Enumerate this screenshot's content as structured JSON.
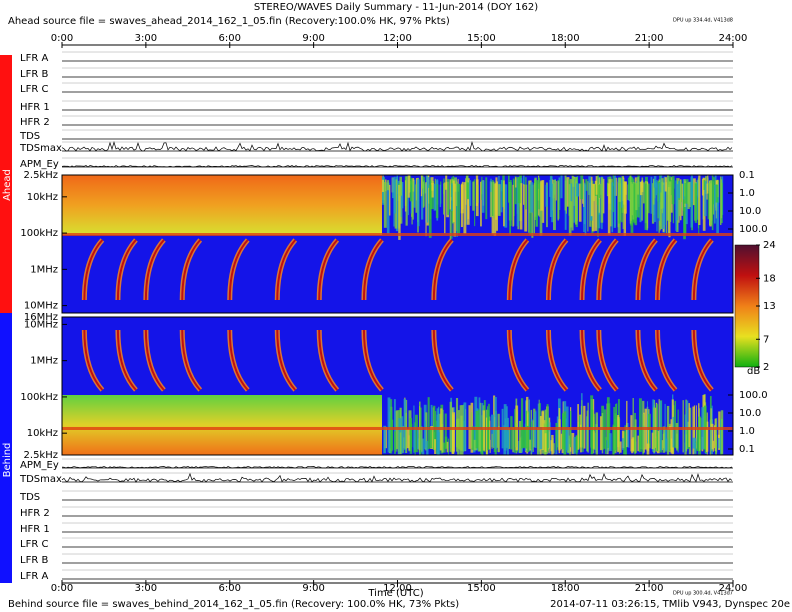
{
  "header": {
    "title": "STEREO/WAVES Daily Summary - 11-Jun-2014 (DOY 162)",
    "ahead_source": "Ahead source file = swaves_ahead_2014_162_1_05.fin (Recovery:100.0% HK, 97% Pkts)",
    "dpu_ahead": "DPU up 334.4d, V413d8"
  },
  "time_axis": {
    "lim": [
      0,
      24
    ],
    "ticks": [
      {
        "value": 0,
        "label": "0:00"
      },
      {
        "value": 3,
        "label": "3:00"
      },
      {
        "value": 6,
        "label": "6:00"
      },
      {
        "value": 9,
        "label": "9:00"
      },
      {
        "value": 12,
        "label": "12:00"
      },
      {
        "value": 15,
        "label": "15:00"
      },
      {
        "value": 18,
        "label": "18:00"
      },
      {
        "value": 21,
        "label": "21:00"
      },
      {
        "value": 24,
        "label": "24:00"
      }
    ],
    "label": "Time (UTC)"
  },
  "spacecraft": [
    "Ahead",
    "Behind"
  ],
  "ahead_panels": [
    "LFR A",
    "LFR B",
    "LFR C",
    "HFR 1",
    "HFR 2",
    "TDS",
    "TDSmax",
    "APM_Ey"
  ],
  "behind_panels": [
    "APM_Ey",
    "TDSmax",
    "TDS",
    "HFR 2",
    "HFR 1",
    "LFR C",
    "LFR B",
    "LFR A"
  ],
  "ahead_spectrum": {
    "log": true,
    "ylim": [
      2500,
      16000000
    ],
    "yticks": [
      {
        "value": 2500,
        "label": "2.5kHz"
      },
      {
        "value": 10000,
        "label": "10kHz"
      },
      {
        "value": 100000,
        "label": "100kHz"
      },
      {
        "value": 1000000,
        "label": "1MHz"
      },
      {
        "value": 10000000,
        "label": "10MHz"
      }
    ],
    "right_lim": [
      0.1,
      100
    ],
    "right_ticks": [
      0.1,
      {
        "value": 1,
        "label": "1.0"
      },
      {
        "value": 10,
        "label": "10.0"
      },
      {
        "value": 100,
        "label": "100.0"
      }
    ]
  },
  "behind_spectrum": {
    "log": true,
    "ylim": [
      16000000,
      2500
    ],
    "yticks": [
      {
        "value": 16000000,
        "label": "16MHz"
      },
      {
        "value": 10000000,
        "label": "10MHz"
      },
      {
        "value": 1000000,
        "label": "1MHz"
      },
      {
        "value": 100000,
        "label": "100kHz"
      },
      {
        "value": 10000,
        "label": "10kHz"
      },
      {
        "value": 2500,
        "label": "2.5kHz"
      }
    ],
    "right_lim": [
      100,
      0.1
    ],
    "right_ticks": [
      {
        "value": 100,
        "label": "100.0"
      },
      {
        "value": 10,
        "label": "10.0"
      },
      {
        "value": 1,
        "label": "1.0"
      },
      0.1
    ]
  },
  "colorbar": {
    "lim": [
      2,
      24
    ],
    "ticks": [
      24,
      18,
      13,
      7,
      2
    ],
    "label": "dB"
  },
  "footer": {
    "behind_source": "Behind source file = swaves_behind_2014_162_1_05.fin (Recovery: 100.0% HK, 73% Pkts)",
    "dpu_behind": "DPU up 300.4d, V413d7",
    "generated": "2014-07-11 03:26:15, TMlib V943, Dynspec 20e"
  }
}
